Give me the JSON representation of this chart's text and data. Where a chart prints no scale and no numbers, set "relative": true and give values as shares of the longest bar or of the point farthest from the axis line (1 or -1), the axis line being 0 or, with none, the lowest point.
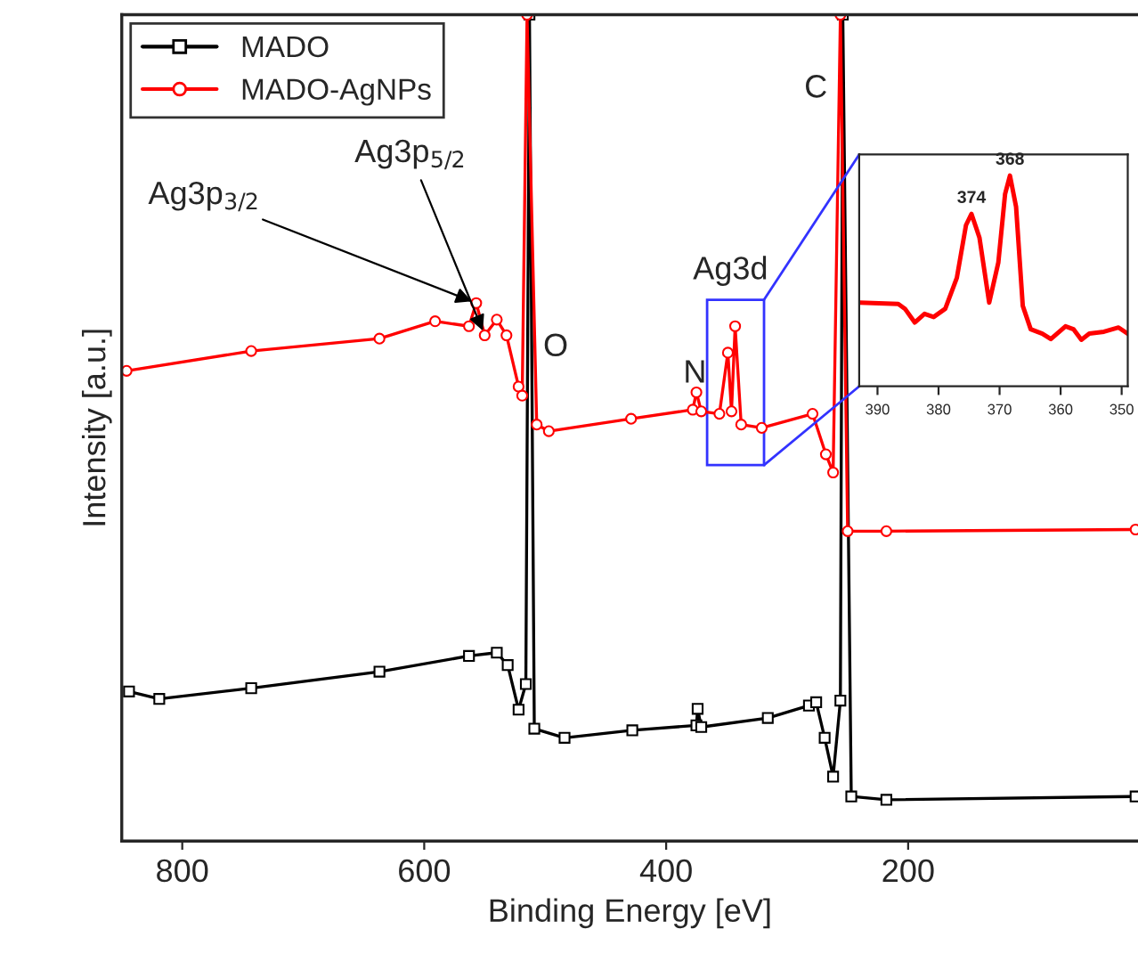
{
  "chart_data": [
    {
      "type": "line",
      "xlabel": "Binding Energy [eV]",
      "ylabel": "Intensity [a.u.]",
      "relative": true,
      "xlim": [
        850,
        10
      ],
      "xticks": [
        800,
        600,
        400,
        200
      ],
      "legend": "top left",
      "grid": false,
      "tick_labels": "x",
      "series": [
        {
          "name": "MADO",
          "color": "#000000",
          "marker": "square",
          "x": [
            844,
            819,
            743,
            637,
            563,
            540,
            531,
            522,
            516,
            513,
            509,
            484,
            428,
            375,
            374,
            371,
            316,
            282,
            276,
            269,
            262,
            256,
            254,
            247,
            218,
            12
          ],
          "values": [
            0.181,
            0.172,
            0.185,
            0.205,
            0.224,
            0.228,
            0.213,
            0.159,
            0.19,
            1.0,
            0.136,
            0.125,
            0.134,
            0.14,
            0.16,
            0.138,
            0.149,
            0.164,
            0.168,
            0.125,
            0.078,
            0.17,
            1.0,
            0.054,
            0.05,
            0.054
          ]
        },
        {
          "name": "MADO-AgNPs",
          "color": "#ff0000",
          "marker": "circle",
          "x": [
            846,
            743,
            637,
            591,
            563,
            557,
            550,
            540,
            532,
            522,
            519,
            515,
            507,
            497,
            429,
            378,
            375,
            371,
            356,
            349,
            346,
            343,
            338,
            321,
            279,
            268,
            262,
            256,
            250,
            218,
            12
          ],
          "values": [
            0.569,
            0.593,
            0.608,
            0.629,
            0.623,
            0.651,
            0.612,
            0.631,
            0.612,
            0.55,
            0.539,
            1.0,
            0.504,
            0.496,
            0.511,
            0.522,
            0.543,
            0.52,
            0.517,
            0.591,
            0.52,
            0.623,
            0.504,
            0.5,
            0.517,
            0.468,
            0.446,
            1.0,
            0.375,
            0.375,
            0.377
          ]
        }
      ],
      "annotations": [
        {
          "text": "Ag3p$_{3/2}$",
          "x": 557,
          "y": 0.651
        },
        {
          "text": "Ag3p$_{5/2}$",
          "x": 550,
          "y": 0.612
        },
        "O",
        "N",
        "Ag3d",
        "C"
      ]
    },
    {
      "type": "line",
      "relative": true,
      "xlim": [
        393,
        349
      ],
      "xticks": [
        390,
        380,
        370,
        360,
        350
      ],
      "grid": false,
      "tick_labels": "x",
      "series": [
        {
          "color": "#ff0000",
          "x": [
            392.9,
            386.6,
            385.5,
            383.9,
            382.3,
            380.8,
            378.9,
            377.0,
            375.5,
            374.6,
            373.3,
            371.7,
            370.2,
            369.1,
            368.3,
            367.3,
            366.2,
            364.9,
            363.0,
            361.6,
            359.2,
            357.9,
            356.6,
            355.3,
            352.9,
            350.5,
            349.0
          ],
          "values": [
            0.397,
            0.391,
            0.368,
            0.303,
            0.344,
            0.329,
            0.368,
            0.515,
            0.765,
            0.818,
            0.706,
            0.397,
            0.588,
            0.912,
            1.0,
            0.853,
            0.382,
            0.271,
            0.25,
            0.224,
            0.285,
            0.271,
            0.221,
            0.25,
            0.259,
            0.279,
            0.25
          ]
        }
      ],
      "annotations": [
        {
          "text": "374",
          "x": 374.6,
          "y": 0.818
        },
        {
          "text": "368",
          "x": 368.3,
          "y": 1.0
        }
      ]
    }
  ]
}
